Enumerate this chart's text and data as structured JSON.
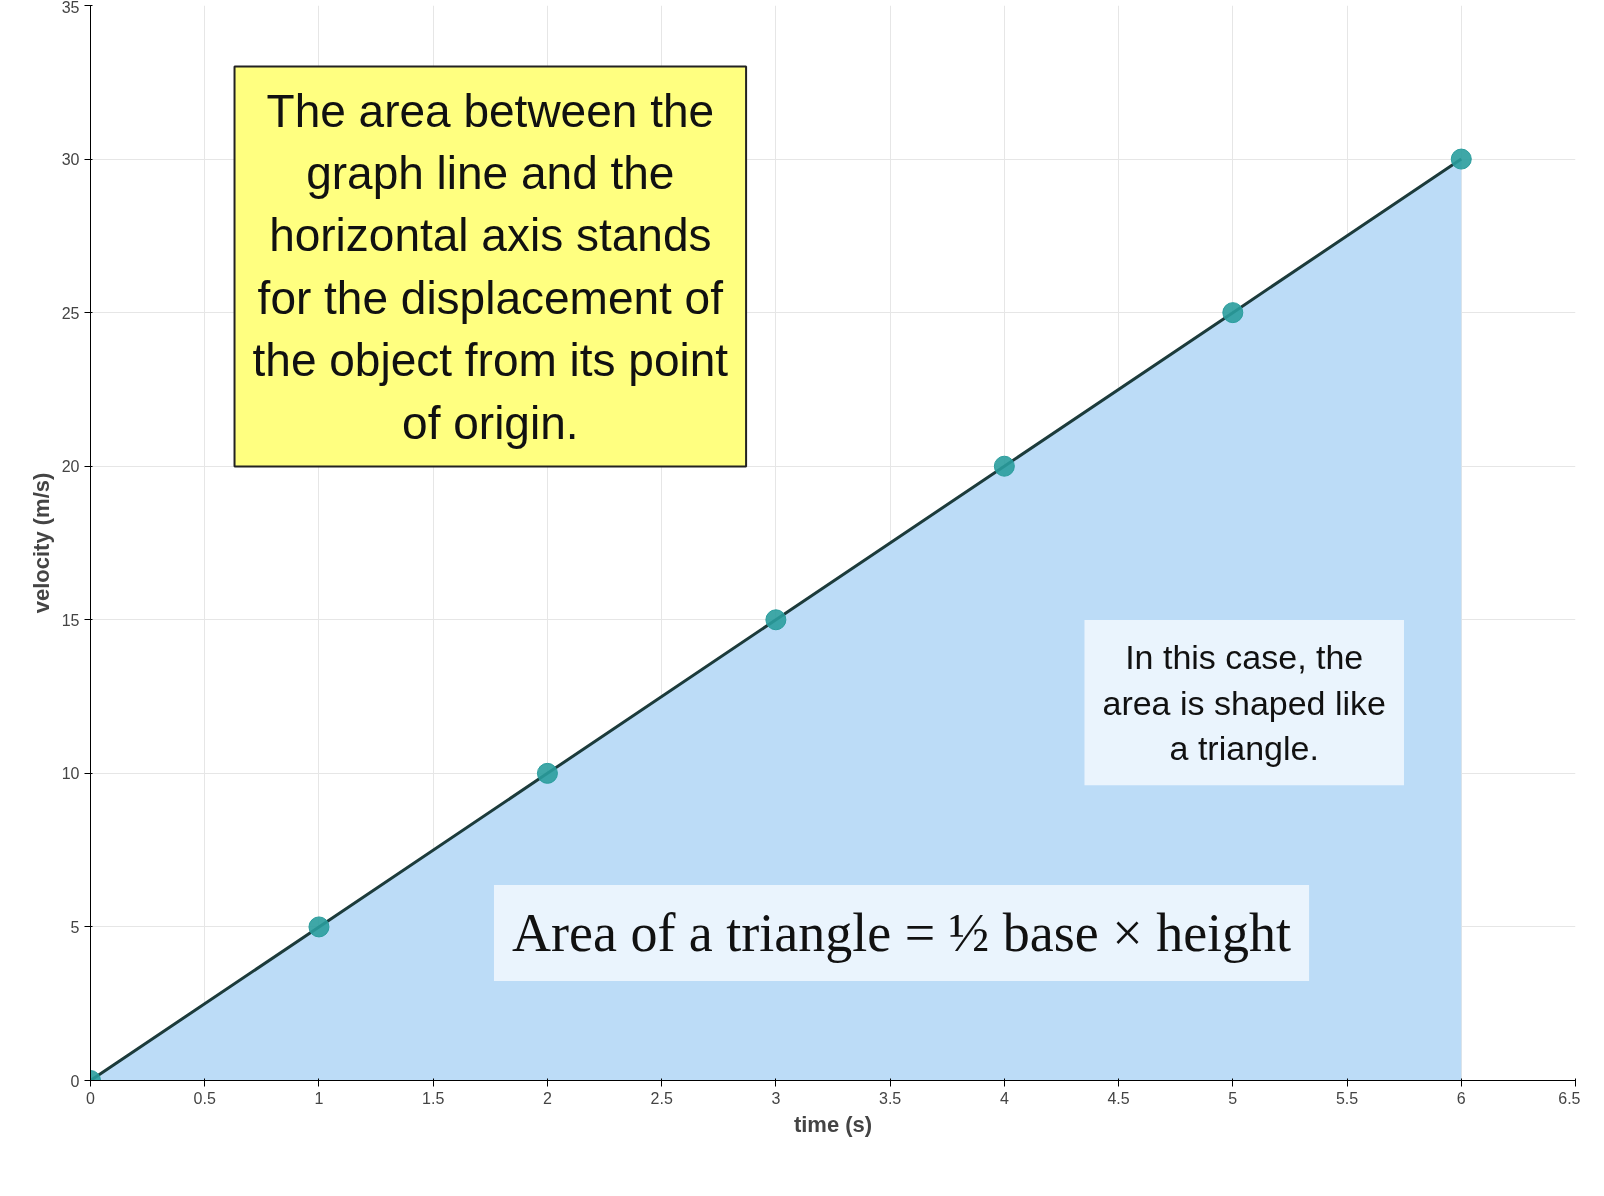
{
  "chart_data": {
    "type": "area",
    "xlabel": "time (s)",
    "ylabel": "velocity (m/s)",
    "x": [
      0,
      1,
      2,
      3,
      4,
      5,
      6
    ],
    "series": [
      {
        "color": "#bcdcf7",
        "values": [
          0,
          5,
          10,
          15,
          20,
          25,
          30
        ]
      }
    ],
    "xlim": [
      0,
      6.5
    ],
    "ylim": [
      0,
      35
    ],
    "xticks": [
      0,
      0.5,
      1,
      1.5,
      2,
      2.5,
      3,
      3.5,
      4,
      4.5,
      5,
      5.5,
      6,
      6.5
    ],
    "yticks": [
      0,
      5,
      10,
      15,
      20,
      25,
      30,
      35
    ],
    "grid": true,
    "marker": "circle",
    "annotations": [
      "The area between the\ngraph line and the\nhorizontal axis stands\nfor the displacement of\nthe object from its point\nof origin.",
      "In this case, the\narea is shaped like\na triangle.",
      "Area of a triangle = ½ base × height"
    ]
  }
}
